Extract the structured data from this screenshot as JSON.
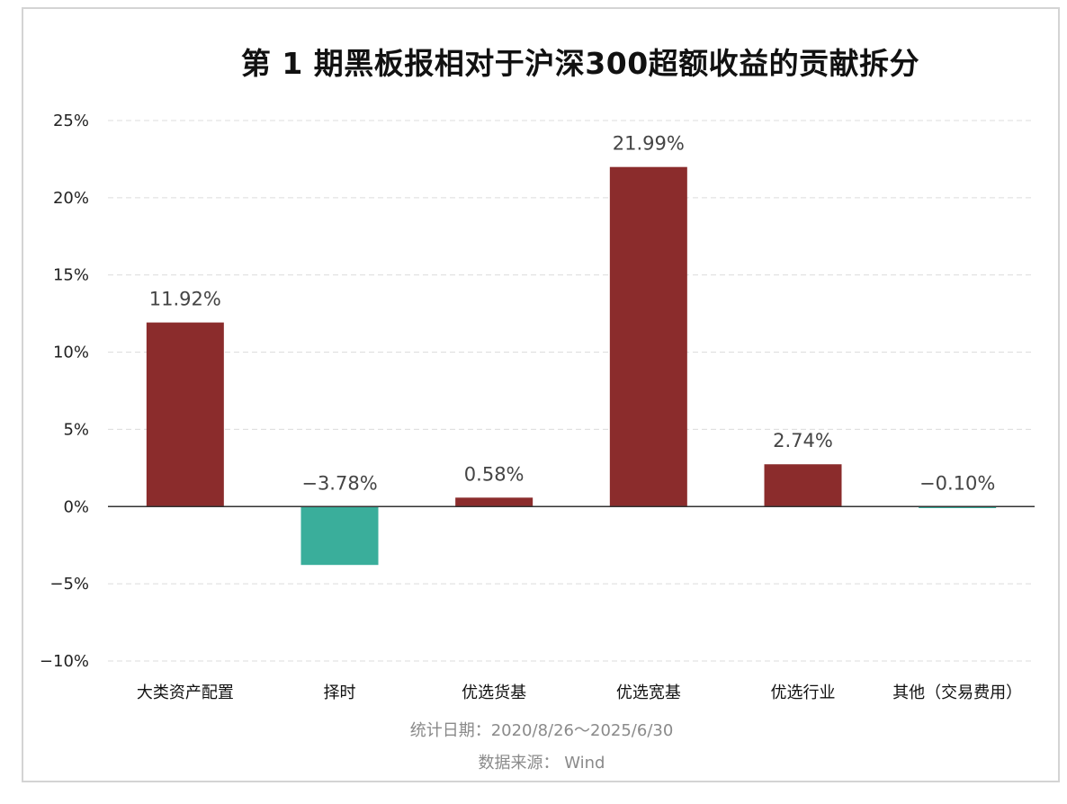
{
  "chart_data": {
    "type": "bar",
    "title": "第 1 期黑板报相对于沪深300超额收益的贡献拆分",
    "categories": [
      "大类资产配置",
      "择时",
      "优选货基",
      "优选宽基",
      "优选行业",
      "其他（交易费用）"
    ],
    "values": [
      11.92,
      -3.78,
      0.58,
      21.99,
      2.74,
      -0.1
    ],
    "data_labels": [
      "11.92%",
      "−3.78%",
      "0.58%",
      "21.99%",
      "2.74%",
      "−0.10%"
    ],
    "ylim": [
      -10,
      25
    ],
    "yticks": [
      25,
      20,
      15,
      10,
      5,
      0,
      -5,
      -10
    ],
    "ytick_labels": [
      "25%",
      "20%",
      "15%",
      "10%",
      "5%",
      "0%",
      "−5%",
      "−10%"
    ],
    "xlabel": "",
    "ylabel": "",
    "grid": true,
    "legend": "none"
  },
  "footer": {
    "date_note": "统计日期：2020/8/26～2025/6/30",
    "source_note": "数据来源： Wind"
  },
  "colors": {
    "positive": "#8b2c2c",
    "negative": "#3aae9b",
    "grid": "#dcdcdc",
    "axis": "#333333"
  }
}
